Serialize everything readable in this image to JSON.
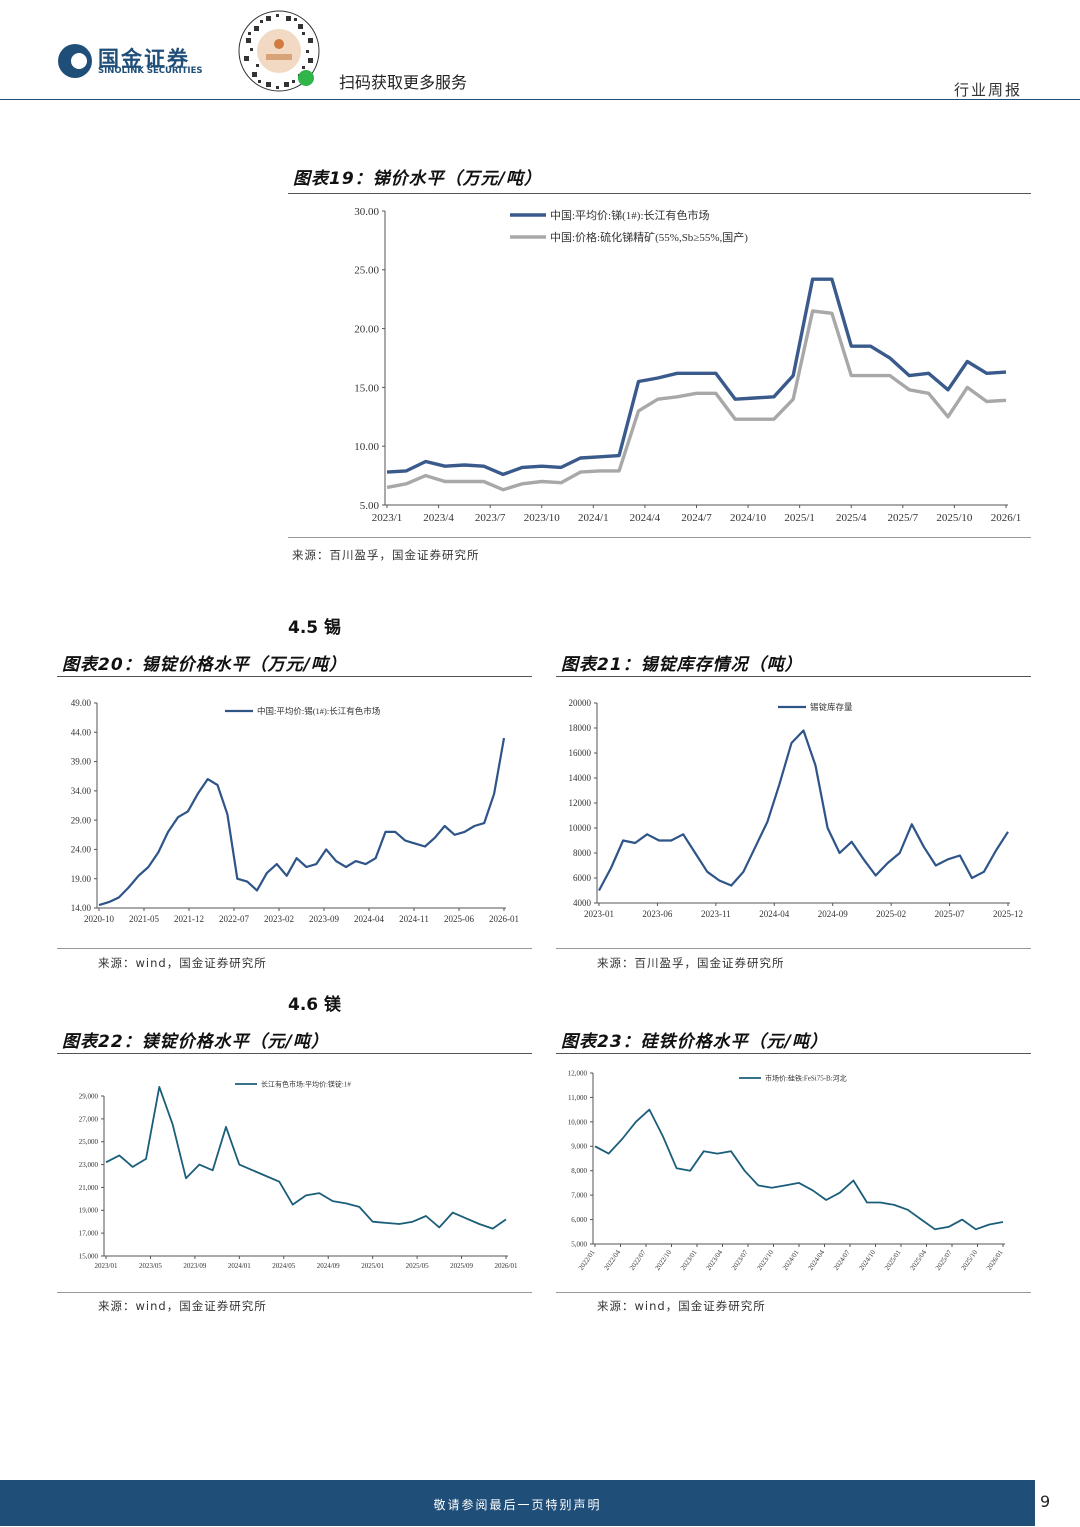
{
  "header": {
    "logo_cn": "国金证券",
    "logo_en": "SINOLINK SECURITIES",
    "scan_text": "扫码获取更多服务",
    "report_type": "行业周报"
  },
  "figure19": {
    "title": "图表19：锑价水平（万元/吨）",
    "source": "来源：百川盈孚，国金证券研究所"
  },
  "section_tin": "4.5 锡",
  "figure20": {
    "title": "图表20：锡锭价格水平（万元/吨）",
    "source": "来源：wind，国金证券研究所"
  },
  "figure21": {
    "title": "图表21：锡锭库存情况（吨）",
    "source": "来源：百川盈孚，国金证券研究所"
  },
  "section_mg": "4.6 镁",
  "figure22": {
    "title": "图表22：镁锭价格水平（元/吨）",
    "source": "来源：wind，国金证券研究所"
  },
  "figure23": {
    "title": "图表23：硅铁价格水平（元/吨）",
    "source": "来源：wind，国金证券研究所"
  },
  "footer": {
    "text": "敬请参阅最后一页特别声明",
    "page": "9"
  },
  "chart_data": [
    {
      "id": "c19",
      "type": "line",
      "title": "图表19：锑价水平（万元/吨）",
      "ylim": [
        5,
        30
      ],
      "yticks": [
        "30.00",
        "25.00",
        "20.00",
        "15.00",
        "10.00",
        "5.00"
      ],
      "xlabels": [
        "2023/1",
        "2023/4",
        "2023/7",
        "2023/10",
        "2024/1",
        "2024/4",
        "2024/7",
        "2024/10",
        "2025/1",
        "2025/4",
        "2025/7",
        "2025/10",
        "2026/1"
      ],
      "legend_position": "top",
      "series": [
        {
          "name": "中国:平均价:锑(1#):长江有色市场",
          "color": "#3a5a8c",
          "values": [
            7.8,
            7.9,
            8.7,
            8.3,
            8.4,
            8.3,
            7.6,
            8.2,
            8.3,
            8.2,
            9.0,
            9.1,
            9.2,
            15.5,
            15.8,
            16.2,
            16.2,
            16.2,
            14.0,
            14.1,
            14.2,
            16.0,
            24.2,
            24.2,
            18.5,
            18.5,
            17.5,
            16.0,
            16.2,
            14.8,
            17.2,
            16.2,
            16.3
          ]
        },
        {
          "name": "中国:价格:硫化锑精矿(55%,Sb≥55%,国产)",
          "color": "#a8a8a8",
          "values": [
            6.5,
            6.8,
            7.5,
            7.0,
            7.0,
            7.0,
            6.3,
            6.8,
            7.0,
            6.9,
            7.8,
            7.9,
            7.9,
            13.0,
            14.0,
            14.2,
            14.5,
            14.5,
            12.3,
            12.3,
            12.3,
            14.0,
            21.5,
            21.3,
            16.0,
            16.0,
            16.0,
            14.8,
            14.5,
            12.5,
            15.0,
            13.8,
            13.9
          ]
        }
      ]
    },
    {
      "id": "c20",
      "type": "line",
      "title": "图表20：锡锭价格水平（万元/吨）",
      "ylim": [
        14,
        49
      ],
      "yticks": [
        "49.00",
        "44.00",
        "39.00",
        "34.00",
        "29.00",
        "24.00",
        "19.00",
        "14.00"
      ],
      "xlabels": [
        "2020-10",
        "2021-05",
        "2021-12",
        "2022-07",
        "2023-02",
        "2023-09",
        "2024-04",
        "2024-11",
        "2025-06",
        "2026-01"
      ],
      "legend_position": "top",
      "series": [
        {
          "name": "中国:平均价:锡(1#):长江有色市场",
          "color": "#2e5488",
          "values": [
            14.5,
            15.0,
            15.8,
            17.5,
            19.5,
            21.0,
            23.5,
            27.0,
            29.5,
            30.5,
            33.5,
            36.0,
            35.0,
            30.0,
            19.0,
            18.5,
            17.0,
            20.0,
            21.5,
            19.5,
            22.5,
            21.0,
            21.5,
            24.0,
            22.0,
            21.0,
            22.0,
            21.5,
            22.5,
            27.0,
            27.0,
            25.5,
            25.0,
            24.5,
            26.0,
            28.0,
            26.5,
            27.0,
            28.0,
            28.5,
            33.5,
            43.0
          ]
        }
      ]
    },
    {
      "id": "c21",
      "type": "line",
      "title": "图表21：锡锭库存情况（吨）",
      "ylim": [
        4000,
        20000
      ],
      "yticks": [
        "20000",
        "18000",
        "16000",
        "14000",
        "12000",
        "10000",
        "8000",
        "6000",
        "4000"
      ],
      "xlabels": [
        "2023-01",
        "2023-06",
        "2023-11",
        "2024-04",
        "2024-09",
        "2025-02",
        "2025-07",
        "2025-12"
      ],
      "legend_position": "top",
      "series": [
        {
          "name": "锡锭库存量",
          "color": "#2e5488",
          "values": [
            5000,
            6800,
            9000,
            8800,
            9500,
            9000,
            9000,
            9500,
            8000,
            6500,
            5800,
            5400,
            6500,
            8500,
            10500,
            13500,
            16800,
            17800,
            15000,
            10000,
            8000,
            8900,
            7500,
            6200,
            7200,
            8000,
            10300,
            8500,
            7000,
            7500,
            7800,
            6000,
            6500,
            8200,
            9700
          ]
        }
      ]
    },
    {
      "id": "c22",
      "type": "line",
      "title": "图表22：镁锭价格水平（元/吨）",
      "ylim": [
        15000,
        29000
      ],
      "yticks": [
        "29,000",
        "27,000",
        "25,000",
        "23,000",
        "21,000",
        "19,000",
        "17,000",
        "15,000"
      ],
      "xlabels": [
        "2023/01",
        "2023/05",
        "2023/09",
        "2024/01",
        "2024/05",
        "2024/09",
        "2025/01",
        "2025/05",
        "2025/09",
        "2026/01"
      ],
      "legend_position": "top",
      "series": [
        {
          "name": "长江有色市场:平均价:镁锭:1#",
          "color": "#1b5e7a",
          "values": [
            23200,
            23800,
            22800,
            23500,
            29800,
            26500,
            21800,
            23000,
            22500,
            26300,
            23000,
            22500,
            22000,
            21500,
            19500,
            20300,
            20500,
            19800,
            19600,
            19300,
            18000,
            17900,
            17800,
            18000,
            18500,
            17500,
            18800,
            18300,
            17800,
            17400,
            18200
          ]
        }
      ]
    },
    {
      "id": "c23",
      "type": "line",
      "title": "图表23：硅铁价格水平（元/吨）",
      "ylim": [
        5000,
        12000
      ],
      "yticks": [
        "12,000",
        "11,000",
        "10,000",
        "9,000",
        "8,000",
        "7,000",
        "6,000",
        "5,000"
      ],
      "xlabels": [
        "2022/01",
        "2022/04",
        "2022/07",
        "2022/10",
        "2023/01",
        "2023/04",
        "2023/07",
        "2023/10",
        "2024/01",
        "2024/04",
        "2024/07",
        "2024/10",
        "2025/01",
        "2025/04",
        "2025/07",
        "2025/10",
        "2026/01"
      ],
      "legend_position": "top",
      "series": [
        {
          "name": "市场价:硅铁:FeSi75-B:河北",
          "color": "#1b5e7a",
          "values": [
            9000,
            8700,
            9300,
            10000,
            10500,
            9400,
            8100,
            8000,
            8800,
            8700,
            8800,
            8000,
            7400,
            7300,
            7400,
            7500,
            7200,
            6800,
            7100,
            7600,
            6700,
            6700,
            6600,
            6400,
            6000,
            5600,
            5700,
            6000,
            5600,
            5800,
            5900
          ]
        }
      ]
    }
  ]
}
